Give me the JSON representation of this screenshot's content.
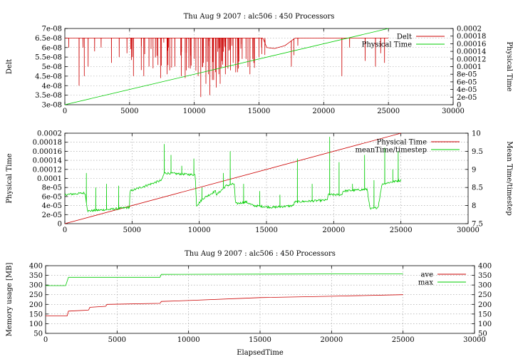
{
  "chart_data": [
    {
      "type": "line",
      "title": "Thu Aug 9 2007 : alc506 : 450 Processors",
      "ylabel": "Delt",
      "y2label": "Physical Time",
      "xlim": [
        0,
        30000
      ],
      "ylim": [
        3e-08,
        7e-08
      ],
      "y2lim": [
        0,
        0.0002
      ],
      "xticks": [
        "0",
        "5000",
        "10000",
        "15000",
        "20000",
        "25000",
        "30000"
      ],
      "yticks": [
        "3e-08",
        "3.5e-08",
        "4e-08",
        "4.5e-08",
        "5e-08",
        "5.5e-08",
        "6e-08",
        "6.5e-08",
        "7e-08"
      ],
      "y2ticks": [
        "0",
        "2e-05",
        "4e-05",
        "6e-05",
        "8e-05",
        "0.0001",
        "0.00012",
        "0.00014",
        "0.00016",
        "0.00018",
        "0.0002"
      ],
      "grid": true,
      "legend_position": "top-right",
      "series": [
        {
          "name": "Delt",
          "color": "#cc0000",
          "axis": "left",
          "base": [
            [
              0,
              6.5e-08
            ],
            [
              15300,
              6.5e-08
            ],
            [
              15600,
              6e-08
            ],
            [
              16200,
              5.95e-08
            ],
            [
              17000,
              6.1e-08
            ],
            [
              17800,
              6.5e-08
            ],
            [
              25000,
              6.5e-08
            ]
          ],
          "dips": [
            [
              300,
              6e-08
            ],
            [
              1100,
              4e-08
            ],
            [
              1400,
              6e-08
            ],
            [
              1500,
              4.5e-08
            ],
            [
              1800,
              5e-08
            ],
            [
              2300,
              5.8e-08
            ],
            [
              2800,
              6e-08
            ],
            [
              3600,
              5.2e-08
            ],
            [
              4200,
              5.5e-08
            ],
            [
              4800,
              5.7e-08
            ],
            [
              5300,
              4.5e-08
            ],
            [
              6100,
              4.5e-08
            ],
            [
              6500,
              5e-08
            ],
            [
              7000,
              5.5e-08
            ],
            [
              7400,
              4.4e-08
            ],
            [
              7900,
              4.6e-08
            ],
            [
              8100,
              4.8e-08
            ],
            [
              8500,
              5e-08
            ],
            [
              9000,
              4.5e-08
            ],
            [
              9300,
              4.4e-08
            ],
            [
              9700,
              4.9e-08
            ],
            [
              10000,
              5.4e-08
            ],
            [
              10300,
              4.5e-08
            ],
            [
              10500,
              3.4e-08
            ],
            [
              10700,
              5.2e-08
            ],
            [
              10900,
              4.1e-08
            ],
            [
              11100,
              4.6e-08
            ],
            [
              11200,
              3.5e-08
            ],
            [
              11400,
              4.3e-08
            ],
            [
              11500,
              4.3e-08
            ],
            [
              11700,
              3.9e-08
            ],
            [
              11900,
              4.6e-08
            ],
            [
              12000,
              4.1e-08
            ],
            [
              12200,
              5.1e-08
            ],
            [
              12400,
              4.6e-08
            ],
            [
              12600,
              4.9e-08
            ],
            [
              12800,
              4.8e-08
            ],
            [
              13000,
              5.2e-08
            ],
            [
              13200,
              4.7e-08
            ],
            [
              13400,
              4.9e-08
            ],
            [
              13700,
              5.4e-08
            ],
            [
              14000,
              5.4e-08
            ],
            [
              14300,
              4.6e-08
            ],
            [
              14600,
              5.2e-08
            ],
            [
              15000,
              5.5e-08
            ],
            [
              15200,
              6e-08
            ],
            [
              17500,
              5e-08
            ],
            [
              17700,
              5.6e-08
            ],
            [
              18000,
              6.1e-08
            ],
            [
              21400,
              4.5e-08
            ],
            [
              22000,
              6e-08
            ],
            [
              23200,
              5.3e-08
            ],
            [
              24000,
              5e-08
            ],
            [
              24400,
              5.7e-08
            ],
            [
              24700,
              5.2e-08
            ]
          ]
        },
        {
          "name": "Physical Time",
          "color": "#00cc00",
          "axis": "right",
          "points": [
            [
              0,
              0
            ],
            [
              25000,
              0.0002
            ]
          ]
        }
      ]
    },
    {
      "type": "line",
      "title": "",
      "ylabel": "Physical Time",
      "y2label": "Mean Time/timestep",
      "xlim": [
        0,
        30000
      ],
      "ylim": [
        0,
        0.0002
      ],
      "y2lim": [
        7.5,
        10
      ],
      "xticks": [
        "0",
        "5000",
        "10000",
        "15000",
        "20000",
        "25000",
        "30000"
      ],
      "yticks": [
        "0",
        "2e-05",
        "4e-05",
        "6e-05",
        "8e-05",
        "0.0001",
        "0.00012",
        "0.00014",
        "0.00016",
        "0.00018",
        "0.0002"
      ],
      "y2ticks": [
        "7.5",
        "8",
        "8.5",
        "9",
        "9.5",
        "10"
      ],
      "grid": true,
      "legend_position": "top-right",
      "series": [
        {
          "name": "Physical Time",
          "color": "#cc0000",
          "axis": "left",
          "points": [
            [
              0,
              0
            ],
            [
              25000,
              0.0002
            ]
          ]
        },
        {
          "name": "meanTime/timestep",
          "color": "#00cc00",
          "axis": "right",
          "base": [
            [
              0,
              8.3
            ],
            [
              1500,
              8.35
            ],
            [
              1700,
              7.85
            ],
            [
              3500,
              7.9
            ],
            [
              4800,
              7.95
            ],
            [
              4850,
              8.4
            ],
            [
              7200,
              8.7
            ],
            [
              7400,
              8.9
            ],
            [
              9700,
              8.85
            ],
            [
              9800,
              8
            ],
            [
              10300,
              8.2
            ],
            [
              11200,
              8.4
            ],
            [
              11300,
              8.3
            ],
            [
              12000,
              8.55
            ],
            [
              12600,
              8.6
            ],
            [
              12700,
              8.05
            ],
            [
              13500,
              8.1
            ],
            [
              14000,
              8
            ],
            [
              15500,
              7.95
            ],
            [
              17000,
              8
            ],
            [
              17100,
              8.1
            ],
            [
              19500,
              8.15
            ],
            [
              19600,
              8.3
            ],
            [
              20600,
              8.3
            ],
            [
              20700,
              8.4
            ],
            [
              22500,
              8.45
            ],
            [
              22700,
              7.9
            ],
            [
              23300,
              7.95
            ],
            [
              23600,
              8.6
            ],
            [
              25000,
              8.7
            ]
          ],
          "spikes": [
            [
              1600,
              8.9
            ],
            [
              2300,
              8.5
            ],
            [
              3100,
              8.6
            ],
            [
              4000,
              8.55
            ],
            [
              5900,
              8.5
            ],
            [
              7400,
              9.7
            ],
            [
              7900,
              9.4
            ],
            [
              8700,
              9.1
            ],
            [
              9600,
              9.3
            ],
            [
              10200,
              8.5
            ],
            [
              11800,
              8.9
            ],
            [
              12300,
              9.5
            ],
            [
              13300,
              8.6
            ],
            [
              14500,
              8.4
            ],
            [
              16000,
              8.3
            ],
            [
              17300,
              9.3
            ],
            [
              18400,
              8.6
            ],
            [
              19700,
              9.9
            ],
            [
              20400,
              9.2
            ],
            [
              21400,
              8.6
            ],
            [
              22300,
              9.4
            ],
            [
              23000,
              8.7
            ],
            [
              23800,
              9.6
            ],
            [
              24400,
              9
            ],
            [
              24800,
              9.5
            ]
          ]
        }
      ]
    },
    {
      "type": "line",
      "title": "Thu Aug 9 2007 : alc506 : 450 Processors",
      "xlabel": "ElapsedTime",
      "ylabel": "Memory usage [MB]",
      "xlim": [
        0,
        30000
      ],
      "ylim": [
        50,
        400
      ],
      "y2lim": [
        50,
        400
      ],
      "xticks": [
        "0",
        "5000",
        "10000",
        "15000",
        "20000",
        "25000",
        "30000"
      ],
      "yticks": [
        "50",
        "100",
        "150",
        "200",
        "250",
        "300",
        "350",
        "400"
      ],
      "y2ticks": [
        "50",
        "100",
        "150",
        "200",
        "250",
        "300",
        "350",
        "400"
      ],
      "grid": true,
      "legend_position": "top-right",
      "series": [
        {
          "name": "ave",
          "color": "#cc0000",
          "axis": "left",
          "points": [
            [
              0,
              140
            ],
            [
              1500,
              140
            ],
            [
              1600,
              165
            ],
            [
              3000,
              170
            ],
            [
              3100,
              185
            ],
            [
              4200,
              190
            ],
            [
              4300,
              200
            ],
            [
              8000,
              205
            ],
            [
              8100,
              215
            ],
            [
              10000,
              220
            ],
            [
              15000,
              235
            ],
            [
              20000,
              242
            ],
            [
              25000,
              250
            ]
          ]
        },
        {
          "name": "max",
          "color": "#00cc00",
          "axis": "left",
          "points": [
            [
              0,
              297
            ],
            [
              1400,
              297
            ],
            [
              1600,
              340
            ],
            [
              8000,
              340
            ],
            [
              8100,
              355
            ],
            [
              25000,
              358
            ]
          ]
        }
      ]
    }
  ]
}
